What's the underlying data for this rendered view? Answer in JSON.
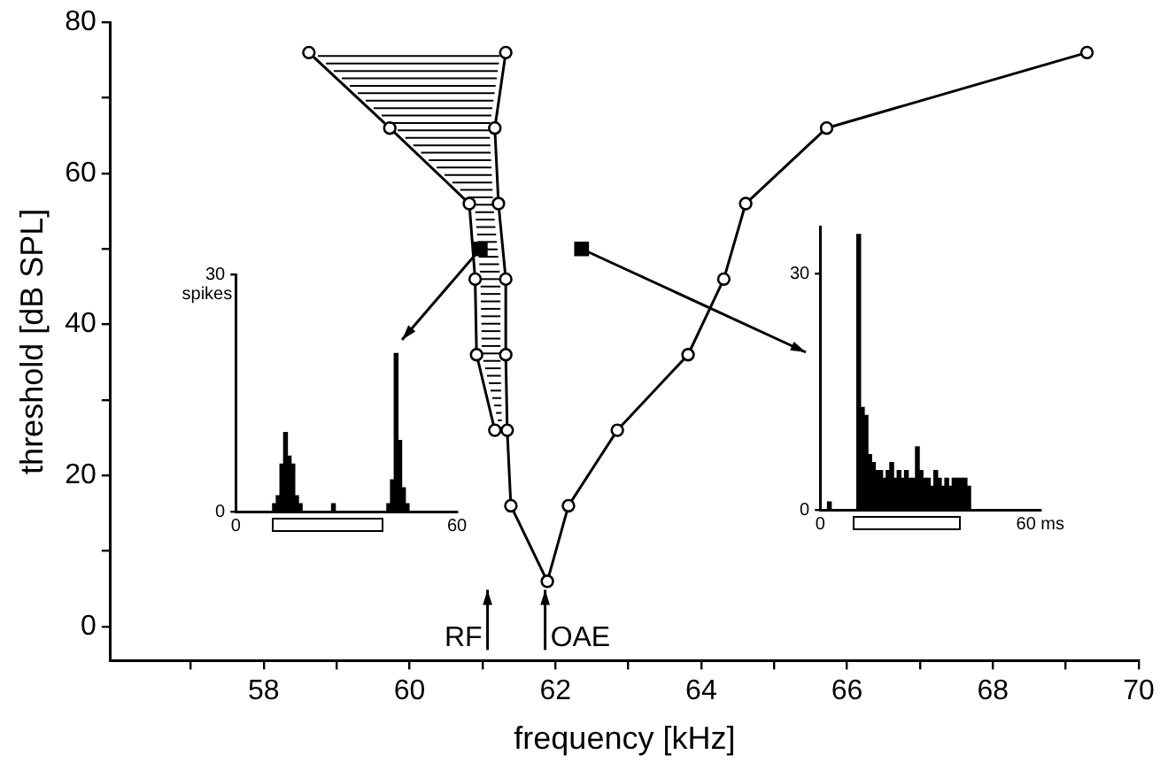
{
  "chart_data": [
    {
      "type": "line",
      "xlabel": "frequency [kHz]",
      "ylabel": "threshold [dB SPL]",
      "xlim": [
        55.9,
        70
      ],
      "ylim": [
        -4.5,
        80
      ],
      "xticks": [
        {
          "value": 57,
          "label": null
        },
        58,
        {
          "value": 59,
          "label": null
        },
        60,
        {
          "value": 61,
          "label": null
        },
        62,
        {
          "value": 63,
          "label": null
        },
        64,
        {
          "value": 65,
          "label": null
        },
        66,
        {
          "value": 67,
          "label": null
        },
        68,
        {
          "value": 69,
          "label": null
        },
        70
      ],
      "yticks": [
        0,
        {
          "value": 10,
          "label": null
        },
        20,
        {
          "value": 30,
          "label": null
        },
        40,
        {
          "value": 50,
          "label": null
        },
        60,
        {
          "value": 70,
          "label": null
        },
        80
      ],
      "grid": false,
      "legend": false,
      "marker": "circle",
      "line_style": "solid",
      "series": [
        {
          "color": "#000000",
          "x": [
            61.32,
            61.17,
            61.22,
            61.32,
            61.32,
            61.34,
            61.39,
            61.89,
            62.18,
            62.85,
            63.82,
            64.31,
            64.61,
            65.72,
            69.29
          ],
          "values": [
            76,
            66,
            56,
            46,
            36,
            26,
            16,
            6,
            16,
            26,
            36,
            46,
            56,
            66,
            76
          ]
        },
        {
          "color": "#000000",
          "x": [
            58.62,
            59.73,
            60.82,
            60.9,
            60.92,
            61.17
          ],
          "values": [
            76,
            66,
            56,
            46,
            36,
            26
          ]
        },
        {
          "type": "scatter",
          "marker": "square",
          "color": "#000000",
          "x": [
            60.97,
            62.36
          ],
          "values": [
            50,
            50
          ]
        }
      ],
      "ref_lines": [
        {
          "axis": "x",
          "value": 61.07,
          "label": "RF"
        },
        {
          "axis": "x",
          "value": 61.86,
          "label": "OAE"
        }
      ]
    },
    {
      "type": "histogram",
      "ylabel": "spikes",
      "color": "#000000",
      "xlim": [
        0,
        60
      ],
      "ylim": [
        0,
        30
      ],
      "xticks": [
        0,
        60
      ],
      "yticks": [
        0,
        30
      ],
      "bins": [
        0,
        1,
        2,
        3,
        4,
        5,
        6,
        7,
        8,
        9,
        10,
        11,
        12,
        13,
        14,
        15,
        16,
        17,
        18,
        19,
        20,
        21,
        22,
        23,
        24,
        25,
        26,
        27,
        28,
        29,
        30,
        31,
        32,
        33,
        34,
        35,
        36,
        37,
        38,
        39,
        40,
        41,
        42,
        43,
        44,
        45,
        46,
        47,
        48,
        49,
        50,
        51,
        52,
        53,
        54,
        55,
        56,
        57,
        58,
        59,
        60
      ],
      "values": [
        0,
        0,
        0,
        0,
        0,
        0,
        0,
        0,
        0,
        0,
        1,
        2,
        6,
        10,
        7,
        6,
        2,
        1,
        0,
        0,
        0,
        0,
        0,
        0,
        0,
        0,
        1,
        0,
        0,
        0,
        0,
        0,
        0,
        0,
        0,
        0,
        0,
        0,
        0,
        0,
        0,
        1,
        4,
        20,
        9,
        3,
        1,
        0,
        0,
        0,
        0,
        0,
        0,
        0,
        0,
        0,
        0,
        0,
        0,
        0
      ]
    },
    {
      "type": "histogram",
      "color": "#000000",
      "xlim": [
        0,
        60
      ],
      "ylim": [
        0,
        36
      ],
      "xticks": [
        0,
        {
          "value": 60,
          "label": "60 ms"
        }
      ],
      "yticks": [
        0,
        30
      ],
      "bins": [
        0,
        1,
        2,
        3,
        4,
        5,
        6,
        7,
        8,
        9,
        10,
        11,
        12,
        13,
        14,
        15,
        16,
        17,
        18,
        19,
        20,
        21,
        22,
        23,
        24,
        25,
        26,
        27,
        28,
        29,
        30,
        31,
        32,
        33,
        34,
        35,
        36,
        37,
        38,
        39,
        40,
        41,
        42,
        43,
        44,
        45,
        46,
        47,
        48,
        49,
        50,
        51,
        52,
        53,
        54,
        55,
        56,
        57,
        58,
        59,
        60
      ],
      "values": [
        0,
        0,
        1,
        0,
        0,
        0,
        0,
        0,
        0,
        0,
        35,
        13,
        12,
        7,
        6,
        5,
        5,
        4,
        5,
        6,
        4,
        5,
        4,
        5,
        4,
        4,
        8,
        5,
        4,
        4,
        3,
        5,
        4,
        3,
        4,
        3,
        4,
        4,
        4,
        4,
        3,
        0,
        0,
        0,
        0,
        0,
        0,
        0,
        0,
        0,
        0,
        0,
        0,
        0,
        0,
        0,
        0,
        0,
        0,
        0
      ]
    }
  ]
}
